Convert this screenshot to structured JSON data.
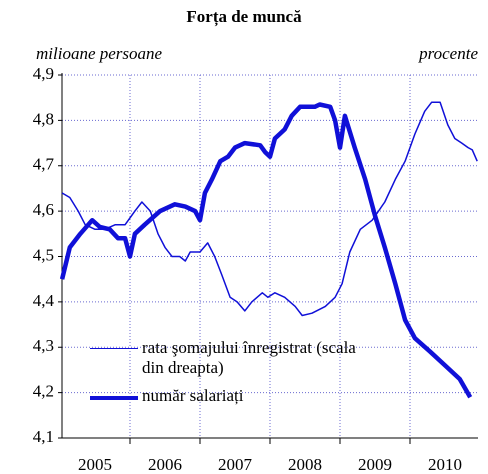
{
  "chart_data": {
    "type": "line",
    "title": "Forța de muncă",
    "ylabel": "milioane persoane",
    "y2label": "procente",
    "xlim": [
      2005,
      2011
    ],
    "xticks": [
      {
        "value": 2005.5,
        "label": "2005"
      },
      {
        "value": 2006.5,
        "label": "2006"
      },
      {
        "value": 2007.5,
        "label": "2007"
      },
      {
        "value": 2008.5,
        "label": "2008"
      },
      {
        "value": 2009.5,
        "label": "2009"
      },
      {
        "value": 2010.5,
        "label": "2010"
      }
    ],
    "ylim": [
      4.1,
      4.9
    ],
    "yticks": [
      {
        "value": 4.1,
        "label": "4,1"
      },
      {
        "value": 4.2,
        "label": "4,2"
      },
      {
        "value": 4.3,
        "label": "4,3"
      },
      {
        "value": 4.4,
        "label": "4,4"
      },
      {
        "value": 4.5,
        "label": "4,5"
      },
      {
        "value": 4.6,
        "label": "4,6"
      },
      {
        "value": 4.7,
        "label": "4,7"
      },
      {
        "value": 4.8,
        "label": "4,8"
      },
      {
        "value": 4.9,
        "label": "4,9"
      }
    ],
    "y2lim": [
      4.1,
      4.9
    ],
    "grid": true,
    "series": [
      {
        "name": "rata şomajului înregistrat (scala din dreapta)",
        "color": "#1010d8",
        "width": 1.5,
        "axis": "y2",
        "x": [
          2005.03,
          2005.14,
          2005.26,
          2005.36,
          2005.5,
          2005.64,
          2005.79,
          2005.93,
          2006.07,
          2006.17,
          2006.29,
          2006.4,
          2006.5,
          2006.6,
          2006.71,
          2006.79,
          2006.86,
          2007.0,
          2007.11,
          2007.21,
          2007.31,
          2007.43,
          2007.53,
          2007.64,
          2007.74,
          2007.89,
          2007.97,
          2008.07,
          2008.21,
          2008.36,
          2008.46,
          2008.6,
          2008.79,
          2008.93,
          2009.03,
          2009.14,
          2009.29,
          2009.46,
          2009.64,
          2009.79,
          2009.93,
          2010.07,
          2010.21,
          2010.31,
          2010.43,
          2010.54,
          2010.64,
          2010.74,
          2010.83,
          2010.89,
          2010.96
        ],
        "values": [
          4.64,
          4.63,
          4.6,
          4.57,
          4.56,
          4.56,
          4.57,
          4.57,
          4.6,
          4.62,
          4.6,
          4.55,
          4.52,
          4.5,
          4.5,
          4.49,
          4.51,
          4.51,
          4.53,
          4.5,
          4.46,
          4.41,
          4.4,
          4.38,
          4.4,
          4.42,
          4.41,
          4.42,
          4.41,
          4.39,
          4.37,
          4.375,
          4.39,
          4.41,
          4.44,
          4.51,
          4.56,
          4.58,
          4.62,
          4.67,
          4.71,
          4.77,
          4.82,
          4.84,
          4.84,
          4.79,
          4.76,
          4.75,
          4.74,
          4.735,
          4.71
        ]
      },
      {
        "name": "număr salariați",
        "color": "#1010d8",
        "width": 4.5,
        "x": [
          2005.03,
          2005.14,
          2005.29,
          2005.46,
          2005.57,
          2005.71,
          2005.83,
          2005.93,
          2006.0,
          2006.07,
          2006.21,
          2006.43,
          2006.64,
          2006.79,
          2006.93,
          2007.0,
          2007.07,
          2007.17,
          2007.29,
          2007.4,
          2007.5,
          2007.64,
          2007.86,
          2007.93,
          2008.0,
          2008.07,
          2008.21,
          2008.31,
          2008.43,
          2008.64,
          2008.71,
          2008.86,
          2008.93,
          2009.0,
          2009.07,
          2009.21,
          2009.36,
          2009.5,
          2009.64,
          2009.79,
          2009.93,
          2010.07,
          2010.29,
          2010.5,
          2010.71,
          2010.86
        ],
        "values": [
          4.45,
          4.52,
          4.55,
          4.58,
          4.565,
          4.56,
          4.54,
          4.54,
          4.5,
          4.55,
          4.57,
          4.6,
          4.615,
          4.61,
          4.6,
          4.58,
          4.64,
          4.67,
          4.71,
          4.72,
          4.74,
          4.75,
          4.745,
          4.73,
          4.72,
          4.76,
          4.78,
          4.81,
          4.83,
          4.83,
          4.835,
          4.83,
          4.8,
          4.74,
          4.81,
          4.74,
          4.67,
          4.59,
          4.52,
          4.44,
          4.36,
          4.32,
          4.29,
          4.26,
          4.23,
          4.19
        ]
      }
    ]
  }
}
